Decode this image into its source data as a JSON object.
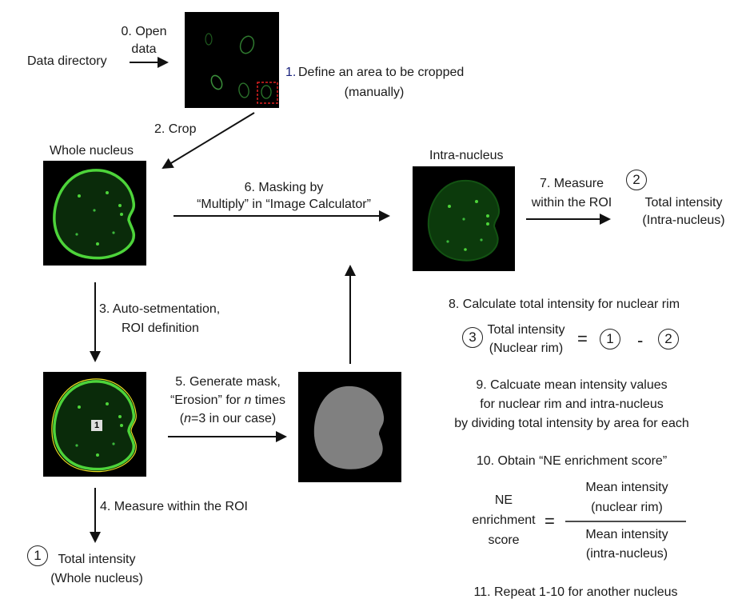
{
  "labels": {
    "step0": "0. Open\ndata",
    "data_dir": "Data directory",
    "step1_num": "1.",
    "step1": "Define an area to be cropped",
    "step1_sub": "(manually)",
    "step2": "2. Crop",
    "whole_nucleus": "Whole nucleus",
    "intra_nucleus": "Intra-nucleus",
    "step3": "3. Auto-setmentation,",
    "step3_sub": "ROI definition",
    "step4": "4. Measure within the ROI",
    "step5_a": "5. Generate mask,",
    "step5_b": "“Erosion” for n times",
    "step5_c": "(n=3 in our case)",
    "step6_a": "6. Masking by",
    "step6_b": "“Multiply” in “Image Calculator”",
    "step7_a": "7. Measure",
    "step7_b": "within the ROI",
    "ti_intra_a": "Total intensity",
    "ti_intra_b": "(Intra-nucleus)",
    "ti_whole_a": "Total intensity",
    "ti_whole_b": "(Whole nucleus)",
    "step8": "8. Calculate total intensity for nuclear rim",
    "ti_rim_a": "Total intensity",
    "ti_rim_b": "(Nuclear rim)",
    "eq": "=",
    "minus": "-",
    "step9_a": "9. Calcuate mean intensity values",
    "step9_b": "for nuclear rim and intra-nucleus",
    "step9_c": "by dividing total intensity by area for each",
    "step10": "10. Obtain “NE enrichment score”",
    "ne_a": "NE",
    "ne_b": "enrichment",
    "ne_c": "score",
    "eq2": "=",
    "mi_rim_a": "Mean intensity",
    "mi_rim_b": "(nuclear rim)",
    "mi_intra_a": "Mean intensity",
    "mi_intra_b": "(intra-nucleus)",
    "step11": "11. Repeat 1-10 for another nucleus",
    "roi_label": "1"
  },
  "circles": {
    "c1": "1",
    "c2": "2",
    "c3": "3"
  },
  "colors": {
    "nucleus": "#4dd43a",
    "roi_outline": "#e8e020",
    "crop_box": "#e02020",
    "mask_fill": "#808080"
  }
}
